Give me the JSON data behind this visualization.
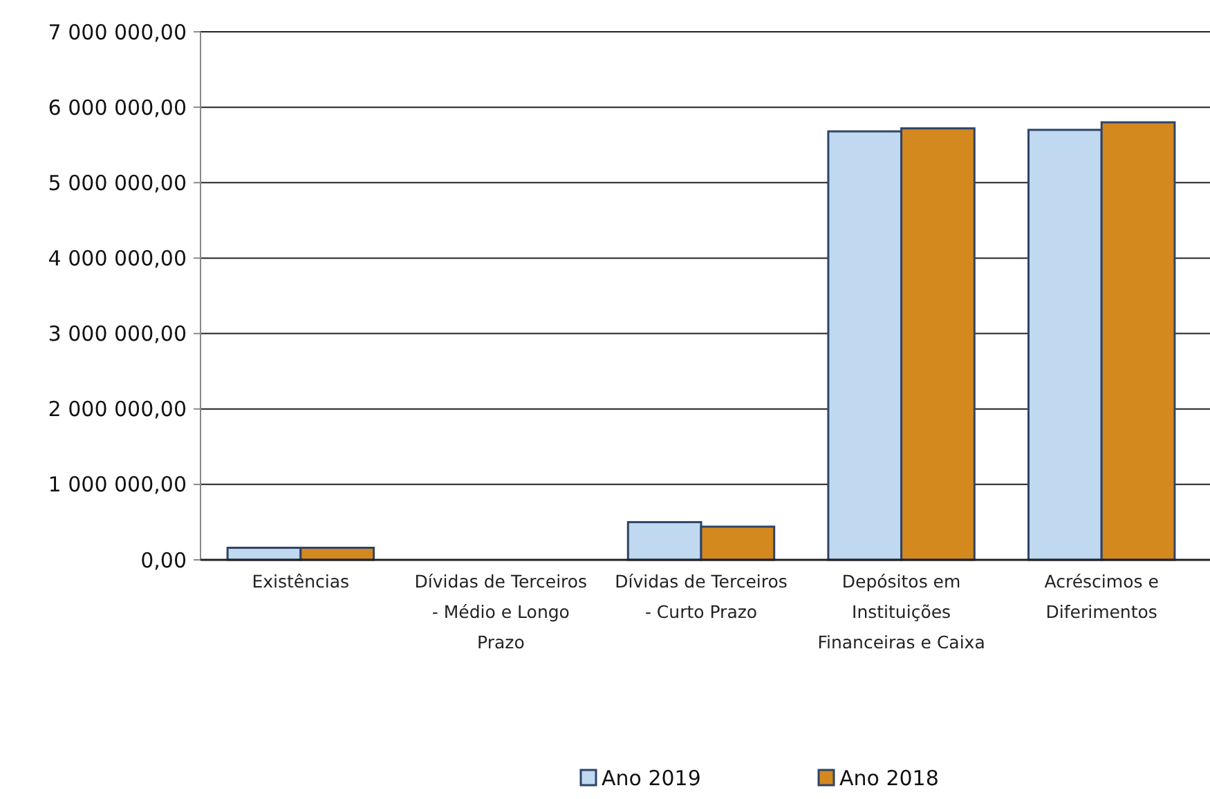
{
  "chart_data": {
    "type": "bar",
    "categories": [
      "Existências",
      "Dívidas de Terceiros - Médio e Longo Prazo",
      "Dívidas de Terceiros - Curto Prazo",
      "Depósitos em Instituições Financeiras e Caixa",
      "Acréscimos e Diferimentos"
    ],
    "series": [
      {
        "name": "Ano 2019",
        "color": "#c0d8f0",
        "values": [
          160000,
          0,
          500000,
          5680000,
          5700000
        ]
      },
      {
        "name": "Ano 2018",
        "color": "#d4891e",
        "values": [
          160000,
          0,
          440000,
          5720000,
          5800000
        ]
      }
    ],
    "ylim": [
      0,
      7000000
    ],
    "yticks": [
      {
        "value": 0,
        "label": "0,00"
      },
      {
        "value": 1000000,
        "label": "1 000 000,00"
      },
      {
        "value": 2000000,
        "label": "2 000 000,00"
      },
      {
        "value": 3000000,
        "label": "3 000 000,00"
      },
      {
        "value": 4000000,
        "label": "4 000 000,00"
      },
      {
        "value": 5000000,
        "label": "5 000 000,00"
      },
      {
        "value": 6000000,
        "label": "6 000 000,00"
      },
      {
        "value": 7000000,
        "label": "7 000 000,00"
      }
    ],
    "grid": "y",
    "legend": "bottom"
  }
}
